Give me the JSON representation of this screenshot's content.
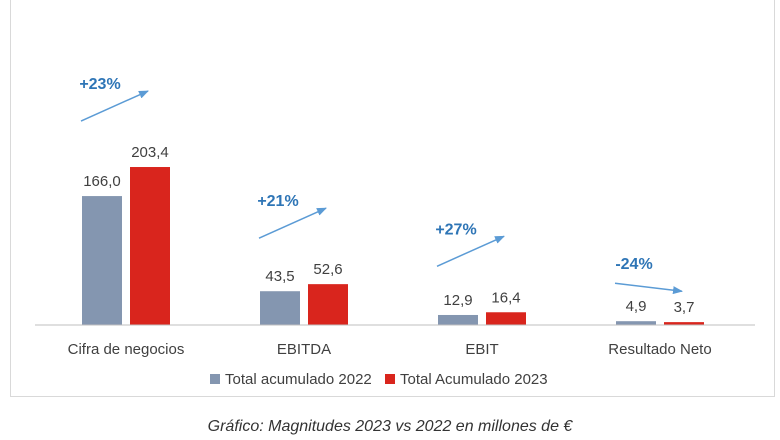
{
  "chart_data": {
    "type": "bar",
    "categories": [
      "Cifra de negocios",
      "EBITDA",
      "EBIT",
      "Resultado Neto"
    ],
    "series": [
      {
        "name": "Total acumulado 2022",
        "values": [
          166.0,
          43.5,
          12.9,
          4.9
        ],
        "labels": [
          "166,0",
          "43,5",
          "12,9",
          "4,9"
        ],
        "color": "#8496b0"
      },
      {
        "name": "Total Acumulado 2023",
        "values": [
          203.4,
          52.6,
          16.4,
          3.7
        ],
        "labels": [
          "203,4",
          "52,6",
          "16,4",
          "3,7"
        ],
        "color": "#d9251d"
      }
    ],
    "annotations": [
      "+23%",
      "+21%",
      "+27%",
      "-24%"
    ],
    "annotation_color": "#2e75b6",
    "ylim": [
      0,
      225
    ],
    "grid": false,
    "legend_position": "bottom"
  },
  "caption": "Gráfico: Magnitudes 2023 vs 2022 en millones de €"
}
